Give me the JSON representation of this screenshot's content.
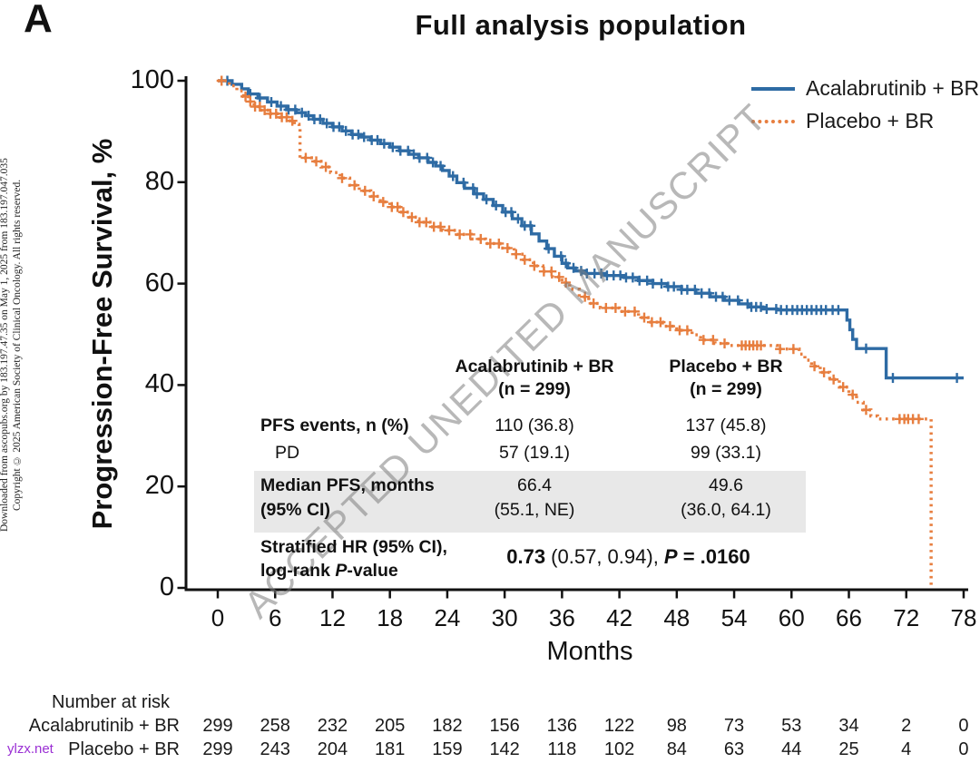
{
  "panel_label": "A",
  "title": "Full analysis population",
  "watermark": "ACCEPTED UNEDITED MANUSCRIPT",
  "site_watermark": "ylzx.net",
  "sidebar": {
    "line1": "Downloaded from ascopubs.org by 183.197.47.35 on May 1, 2025 from 183.197.047.035",
    "line2": "Copyright © 2025 American Society of Clinical Oncology. All rights reserved."
  },
  "legend": [
    {
      "label": "Acalabrutinib + BR",
      "color": "#2e6ba4",
      "style": "solid"
    },
    {
      "label": "Placebo + BR",
      "color": "#e77e3f",
      "style": "dotted"
    }
  ],
  "stats": {
    "col1_line1": "Acalabrutinib + BR",
    "col1_line2": "(n = 299)",
    "col2_line1": "Placebo + BR",
    "col2_line2": "(n = 299)",
    "pfs_label": "PFS events, n (%)",
    "pfs_acala": "110 (36.8)",
    "pfs_placebo": "137 (45.8)",
    "pd_label": "PD",
    "pd_acala": "57 (19.1)",
    "pd_placebo": "99 (33.1)",
    "median_label_1": "Median PFS, months",
    "median_label_2": "(95% CI)",
    "median_acala_1": "66.4",
    "median_acala_2": "(55.1, NE)",
    "median_placebo_1": "49.6",
    "median_placebo_2": "(36.0, 64.1)",
    "hr_label_1": "Stratified HR (95% CI),",
    "hr_label_2a": "log-rank ",
    "hr_label_2b": "P",
    "hr_label_2c": "-value",
    "hr_value_bold": "0.73",
    "hr_value_mid": " (0.57, 0.94), ",
    "hr_value_p": "P",
    "hr_value_end": " = .0160"
  },
  "number_at_risk": {
    "heading": "Number at risk",
    "months": [
      0,
      6,
      12,
      18,
      24,
      30,
      36,
      42,
      48,
      54,
      60,
      66,
      72,
      78
    ],
    "rows": [
      {
        "label": "Acalabrutinib + BR",
        "values": [
          299,
          258,
          232,
          205,
          182,
          156,
          136,
          122,
          98,
          73,
          53,
          34,
          2,
          0
        ]
      },
      {
        "label": "Placebo + BR",
        "values": [
          299,
          243,
          204,
          181,
          159,
          142,
          118,
          102,
          84,
          63,
          44,
          25,
          4,
          0
        ]
      }
    ]
  },
  "chart_data": {
    "type": "line",
    "subtype": "kaplan-meier-step",
    "title": "Full analysis population",
    "xlabel": "Months",
    "ylabel": "Progression-Free Survival, %",
    "xlim": [
      0,
      78
    ],
    "ylim": [
      0,
      100
    ],
    "xticks": [
      0,
      6,
      12,
      18,
      24,
      30,
      36,
      42,
      48,
      54,
      60,
      66,
      72,
      78
    ],
    "yticks": [
      0,
      20,
      40,
      60,
      80,
      100
    ],
    "grid": false,
    "legend_position": "top-right",
    "series": [
      {
        "name": "Acalabrutinib + BR",
        "color": "#2e6ba4",
        "line": "solid",
        "median_months": 66.4,
        "steps": [
          [
            0,
            100
          ],
          [
            1.5,
            99.3
          ],
          [
            2.5,
            98.4
          ],
          [
            3.2,
            97.4
          ],
          [
            4.2,
            96.6
          ],
          [
            5.2,
            95.8
          ],
          [
            6.2,
            95.0
          ],
          [
            7.2,
            94.3
          ],
          [
            8.2,
            93.7
          ],
          [
            9.2,
            93.1
          ],
          [
            10,
            92.4
          ],
          [
            11,
            91.6
          ],
          [
            12,
            90.9
          ],
          [
            13,
            90.1
          ],
          [
            14,
            89.4
          ],
          [
            15,
            88.9
          ],
          [
            16,
            88.3
          ],
          [
            17,
            87.6
          ],
          [
            18,
            86.9
          ],
          [
            19,
            86.2
          ],
          [
            20,
            85.5
          ],
          [
            21,
            84.8
          ],
          [
            22,
            83.9
          ],
          [
            22.8,
            83.2
          ],
          [
            23.5,
            82.3
          ],
          [
            24.2,
            81.2
          ],
          [
            25,
            79.9
          ],
          [
            25.8,
            78.8
          ],
          [
            26.8,
            77.7
          ],
          [
            27.8,
            76.6
          ],
          [
            28.8,
            75.4
          ],
          [
            29.8,
            74.1
          ],
          [
            30.8,
            72.8
          ],
          [
            31.8,
            71.4
          ],
          [
            32.8,
            69.8
          ],
          [
            33.6,
            68.4
          ],
          [
            34.4,
            66.9
          ],
          [
            35.2,
            65.4
          ],
          [
            36,
            64.0
          ],
          [
            36.6,
            63.1
          ],
          [
            37.4,
            62.5
          ],
          [
            38.5,
            62.0
          ],
          [
            40.5,
            61.6
          ],
          [
            42.5,
            61.2
          ],
          [
            44,
            60.6
          ],
          [
            45.5,
            60.0
          ],
          [
            47,
            59.4
          ],
          [
            48.5,
            58.8
          ],
          [
            50,
            58.1
          ],
          [
            51.5,
            57.4
          ],
          [
            53,
            56.7
          ],
          [
            54.5,
            56.0
          ],
          [
            55.5,
            55.4
          ],
          [
            57,
            55.0
          ],
          [
            58.5,
            54.8
          ],
          [
            65.4,
            54.8
          ],
          [
            65.8,
            52.8
          ],
          [
            66.1,
            50.9
          ],
          [
            66.4,
            49.0
          ],
          [
            66.8,
            47.2
          ],
          [
            69.8,
            47.2
          ],
          [
            69.9,
            41.4
          ],
          [
            78,
            41.4
          ]
        ],
        "censor_months": [
          1,
          3.4,
          4.4,
          5.6,
          6.6,
          7.4,
          8.1,
          8.8,
          9.5,
          10.1,
          10.7,
          11.4,
          12.1,
          12.7,
          13.4,
          14.1,
          14.7,
          15.3,
          16.1,
          16.7,
          17.4,
          18.3,
          19.1,
          19.9,
          20.5,
          21.1,
          21.9,
          22.5,
          23.3,
          24.6,
          25.7,
          26.7,
          27.1,
          28.1,
          29.1,
          30.1,
          30.7,
          31.4,
          32.1,
          32.7,
          34.6,
          35.9,
          36.4,
          37.2,
          38,
          38.6,
          39.4,
          40.1,
          40.7,
          41.4,
          42.1,
          42.7,
          43.4,
          44.1,
          44.9,
          45.5,
          46.4,
          47.1,
          47.7,
          48.5,
          49.1,
          49.9,
          50.6,
          51.4,
          52.1,
          52.8,
          53.5,
          54.4,
          55.4,
          55.8,
          56.3,
          56.8,
          57.4,
          58.4,
          58.9,
          59.5,
          60.1,
          60.6,
          61.1,
          61.6,
          62.1,
          62.6,
          63.1,
          63.6,
          64.3,
          64.9,
          67.8,
          70.6,
          77.3
        ]
      },
      {
        "name": "Placebo + BR",
        "color": "#e77e3f",
        "line": "dotted",
        "median_months": 49.6,
        "steps": [
          [
            0,
            100
          ],
          [
            1.2,
            99.0
          ],
          [
            2,
            98.0
          ],
          [
            2.7,
            96.9
          ],
          [
            3.2,
            95.9
          ],
          [
            3.8,
            94.9
          ],
          [
            4.5,
            94.2
          ],
          [
            5.5,
            93.5
          ],
          [
            6.5,
            92.8
          ],
          [
            7.3,
            92.1
          ],
          [
            8,
            91.4
          ],
          [
            8.5,
            90.6
          ],
          [
            8.6,
            84.8
          ],
          [
            9.8,
            84.1
          ],
          [
            10.8,
            83.0
          ],
          [
            11.8,
            81.9
          ],
          [
            12.8,
            80.8
          ],
          [
            13.8,
            79.4
          ],
          [
            14.8,
            78.3
          ],
          [
            16,
            77.2
          ],
          [
            17,
            76.1
          ],
          [
            18,
            75.1
          ],
          [
            19,
            74.1
          ],
          [
            20,
            73.1
          ],
          [
            21,
            72.1
          ],
          [
            22.2,
            71.2
          ],
          [
            23.5,
            70.5
          ],
          [
            25,
            69.7
          ],
          [
            26.5,
            68.8
          ],
          [
            28,
            67.9
          ],
          [
            29.5,
            67.0
          ],
          [
            31,
            65.8
          ],
          [
            32,
            64.7
          ],
          [
            33,
            63.5
          ],
          [
            34,
            62.4
          ],
          [
            35,
            61.3
          ],
          [
            36,
            60.2
          ],
          [
            36.8,
            58.9
          ],
          [
            37.8,
            57.4
          ],
          [
            38.8,
            56.1
          ],
          [
            40,
            55.2
          ],
          [
            42,
            54.5
          ],
          [
            44,
            53.3
          ],
          [
            45,
            52.4
          ],
          [
            46.5,
            51.6
          ],
          [
            48,
            50.8
          ],
          [
            49.6,
            49.9
          ],
          [
            50.5,
            48.9
          ],
          [
            52,
            48.2
          ],
          [
            53.5,
            47.8
          ],
          [
            58.5,
            47.1
          ],
          [
            60.8,
            46.1
          ],
          [
            61.4,
            44.9
          ],
          [
            62.1,
            43.7
          ],
          [
            63,
            42.5
          ],
          [
            64,
            41.1
          ],
          [
            65,
            39.6
          ],
          [
            66,
            38.1
          ],
          [
            66.8,
            36.6
          ],
          [
            67.5,
            35.1
          ],
          [
            68.3,
            33.9
          ],
          [
            69,
            33.3
          ],
          [
            74.5,
            33.3
          ],
          [
            74.6,
            0
          ]
        ],
        "censor_months": [
          0.4,
          2.9,
          3.4,
          3.9,
          4.4,
          4.9,
          5.5,
          6.1,
          6.7,
          7.2,
          7.8,
          9.2,
          10.3,
          11.3,
          13,
          14.3,
          15.4,
          16.3,
          17.3,
          18.2,
          18.8,
          19.4,
          20.3,
          21.1,
          21.8,
          22.6,
          23.3,
          24.2,
          25.3,
          26.4,
          27.5,
          28.5,
          29.4,
          30.3,
          31.2,
          32.1,
          33.1,
          34.1,
          34.9,
          35.7,
          36.4,
          38.4,
          39.3,
          40.6,
          41.6,
          42.6,
          43.6,
          44.6,
          45.4,
          46.3,
          47.3,
          48.3,
          49.1,
          50.8,
          51.8,
          53,
          54.8,
          55.2,
          55.6,
          56,
          56.4,
          56.8,
          58.8,
          60.2,
          62.4,
          63.4,
          64.4,
          65.4,
          66.4,
          67.8,
          71.3,
          71.8,
          72.2,
          72.7,
          73.3
        ]
      }
    ]
  }
}
